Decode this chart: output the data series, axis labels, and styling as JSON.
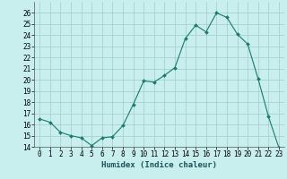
{
  "x": [
    0,
    1,
    2,
    3,
    4,
    5,
    6,
    7,
    8,
    9,
    10,
    11,
    12,
    13,
    14,
    15,
    16,
    17,
    18,
    19,
    20,
    21,
    22,
    23
  ],
  "y": [
    16.5,
    16.2,
    15.3,
    15.0,
    14.8,
    14.1,
    14.8,
    14.9,
    15.9,
    17.8,
    19.9,
    19.8,
    20.4,
    21.1,
    23.7,
    24.9,
    24.3,
    26.0,
    25.6,
    24.1,
    23.2,
    20.1,
    16.7,
    13.9
  ],
  "line_color": "#1a7a6e",
  "marker": "D",
  "marker_size": 2,
  "bg_color": "#c8eeee",
  "grid_color": "#a0cccc",
  "xlabel": "Humidex (Indice chaleur)",
  "ylim": [
    14,
    27
  ],
  "xlim": [
    -0.5,
    23.5
  ],
  "yticks": [
    14,
    15,
    16,
    17,
    18,
    19,
    20,
    21,
    22,
    23,
    24,
    25,
    26
  ],
  "xticks": [
    0,
    1,
    2,
    3,
    4,
    5,
    6,
    7,
    8,
    9,
    10,
    11,
    12,
    13,
    14,
    15,
    16,
    17,
    18,
    19,
    20,
    21,
    22,
    23
  ],
  "xtick_labels": [
    "0",
    "1",
    "2",
    "3",
    "4",
    "5",
    "6",
    "7",
    "8",
    "9",
    "10",
    "11",
    "12",
    "13",
    "14",
    "15",
    "16",
    "17",
    "18",
    "19",
    "20",
    "21",
    "22",
    "23"
  ],
  "axis_fontsize": 5.5,
  "xlabel_fontsize": 6.5
}
